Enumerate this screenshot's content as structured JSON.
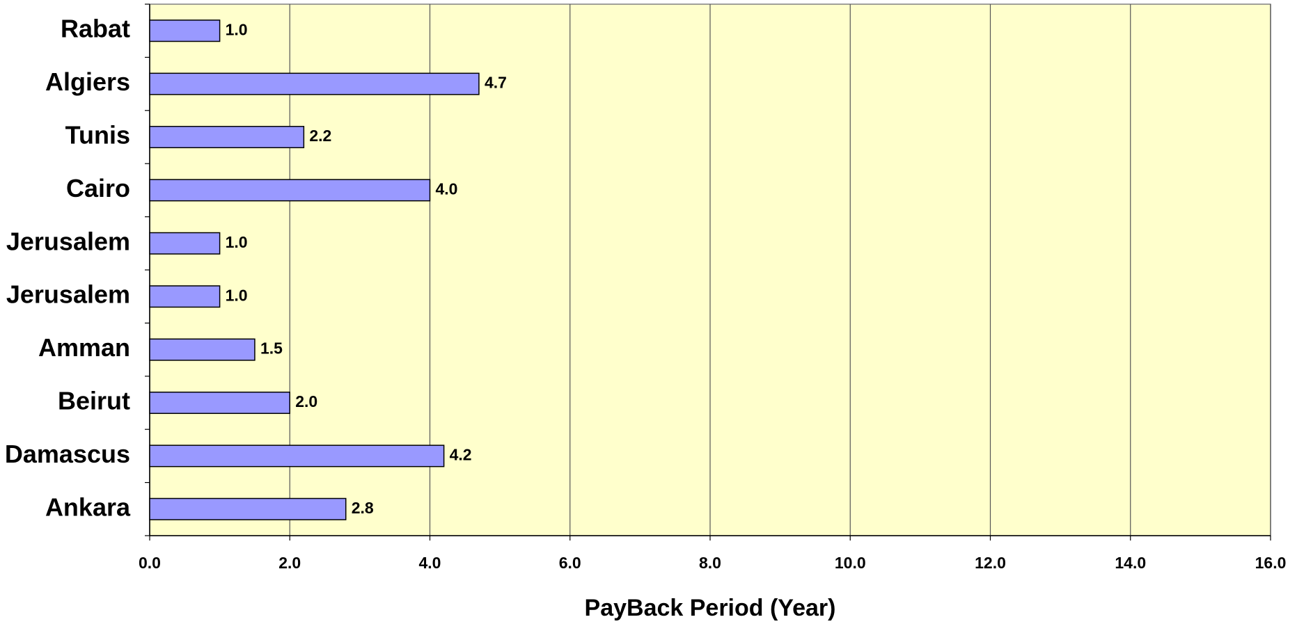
{
  "chart_data": {
    "type": "bar",
    "orientation": "horizontal",
    "x_label": "PayBack Period (Year)",
    "categories": [
      "Rabat",
      "Algiers",
      "Tunis",
      "Cairo",
      "Jerusalem",
      "Jerusalem",
      "Amman",
      "Beirut",
      "Damascus",
      "Ankara"
    ],
    "values": [
      1.0,
      4.7,
      2.2,
      4.0,
      1.0,
      1.0,
      1.5,
      2.0,
      4.2,
      2.8
    ],
    "value_labels": [
      "1.0",
      "4.7",
      "2.2",
      "4.0",
      "1.0",
      "1.0",
      "1.5",
      "2.0",
      "4.2",
      "2.8"
    ],
    "color": "#9999ff",
    "xlim": [
      0,
      16
    ],
    "xticks": [
      {
        "value": 0,
        "label": "0.0"
      },
      {
        "value": 2,
        "label": "2.0"
      },
      {
        "value": 4,
        "label": "4.0"
      },
      {
        "value": 6,
        "label": "6.0"
      },
      {
        "value": 8,
        "label": "8.0"
      },
      {
        "value": 10,
        "label": "10.0"
      },
      {
        "value": 12,
        "label": "12.0"
      },
      {
        "value": 14,
        "label": "14.0"
      },
      {
        "value": 16,
        "label": "16.0"
      }
    ],
    "grid": true,
    "background": "#ffffcc"
  }
}
